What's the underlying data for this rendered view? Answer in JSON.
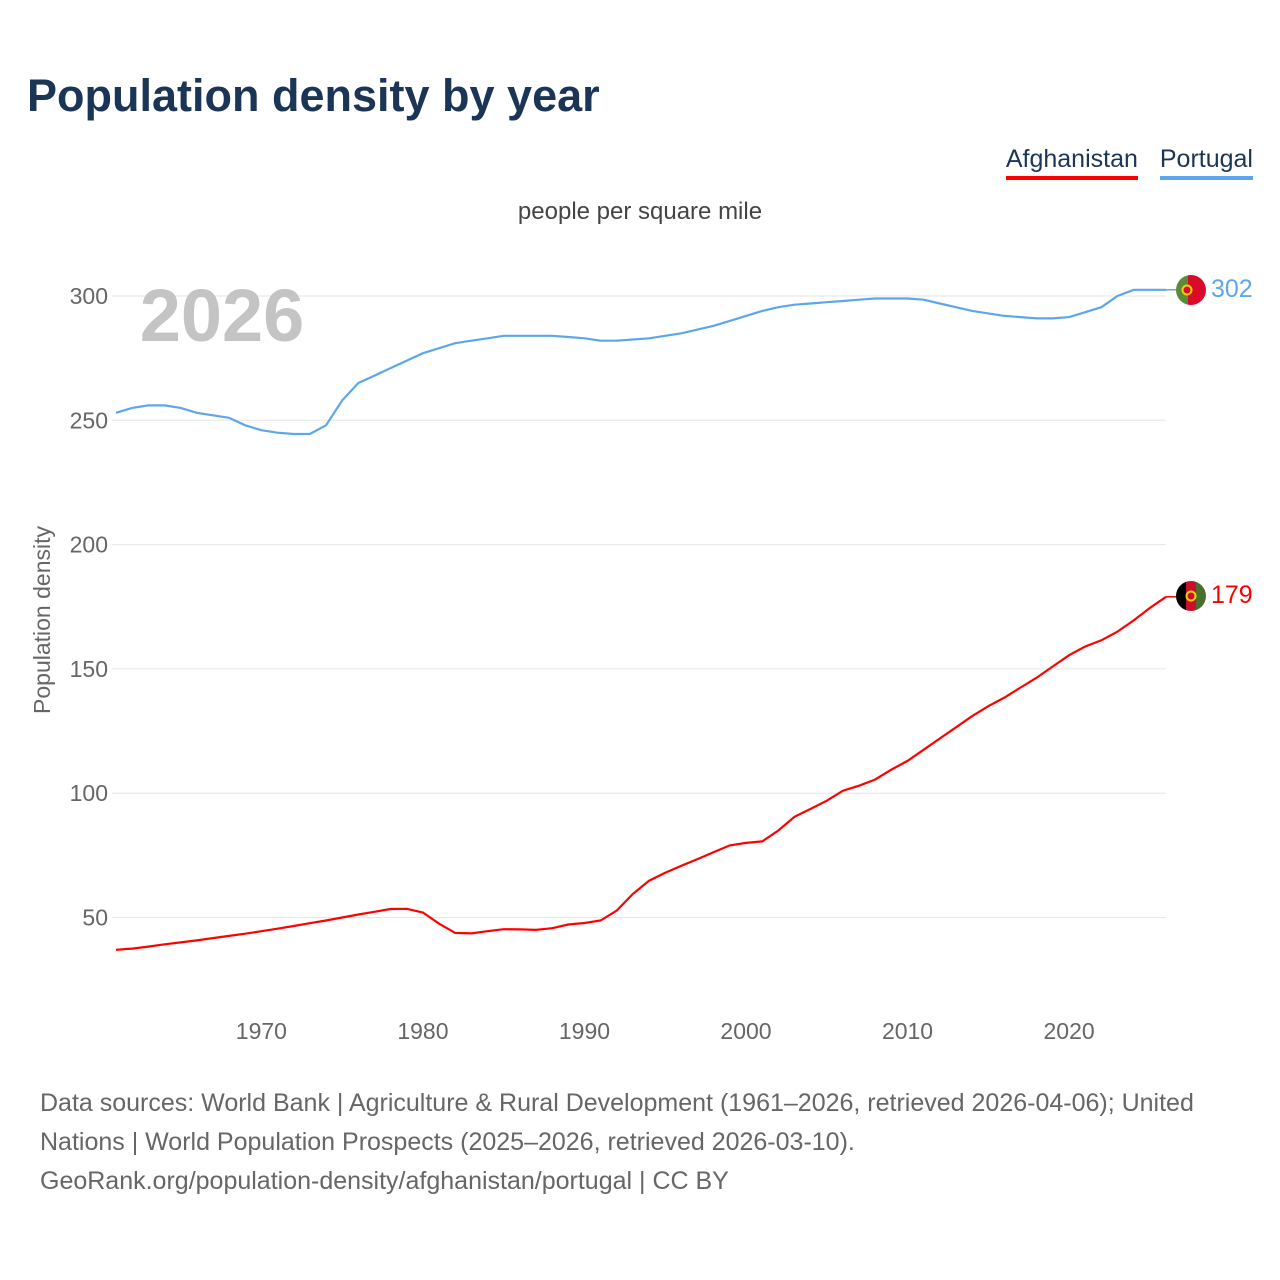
{
  "title": "Population density by year",
  "legend": [
    {
      "name": "Afghanistan",
      "color": "#ff0000"
    },
    {
      "name": "Portugal",
      "color": "#5ea6ea"
    }
  ],
  "subtitle": "people per square mile",
  "year_watermark": "2026",
  "footer": {
    "line1": "Data sources: World Bank | Agriculture & Rural Development (1961–2026, retrieved 2026-04-06); United Nations | World Population Prospects (2025–2026, retrieved 2026-03-10).",
    "line2": "GeoRank.org/population-density/afghanistan/portugal | CC BY"
  },
  "chart_data": {
    "type": "line",
    "title": "Population density by year",
    "subtitle": "people per square mile",
    "xlabel": "",
    "ylabel": "Population density",
    "xlim": [
      1961,
      2026
    ],
    "ylim": [
      15,
      320
    ],
    "x_ticks": [
      1970,
      1980,
      1990,
      2000,
      2010,
      2020
    ],
    "y_ticks": [
      50,
      100,
      150,
      200,
      250,
      300
    ],
    "grid": true,
    "legend_position": "top-right",
    "x": [
      1961,
      1962,
      1963,
      1964,
      1965,
      1966,
      1967,
      1968,
      1969,
      1970,
      1971,
      1972,
      1973,
      1974,
      1975,
      1976,
      1977,
      1978,
      1979,
      1980,
      1981,
      1982,
      1983,
      1984,
      1985,
      1986,
      1987,
      1988,
      1989,
      1990,
      1991,
      1992,
      1993,
      1994,
      1995,
      1996,
      1997,
      1998,
      1999,
      2000,
      2001,
      2002,
      2003,
      2004,
      2005,
      2006,
      2007,
      2008,
      2009,
      2010,
      2011,
      2012,
      2013,
      2014,
      2015,
      2016,
      2017,
      2018,
      2019,
      2020,
      2021,
      2022,
      2023,
      2024,
      2025,
      2026
    ],
    "series": [
      {
        "name": "Portugal",
        "color": "#5ea6ea",
        "end_label": "302",
        "values": [
          253,
          255,
          256,
          256,
          255,
          253,
          252,
          251,
          248,
          246,
          245,
          244.5,
          244.5,
          248,
          258,
          265,
          268,
          271,
          274,
          277,
          279,
          281,
          282,
          283,
          284,
          284,
          284,
          284,
          283.5,
          283,
          282,
          282,
          282.5,
          283,
          284,
          285,
          286.5,
          288,
          290,
          292,
          294,
          295.5,
          296.5,
          297,
          297.5,
          298,
          298.5,
          299,
          299,
          299,
          298.5,
          297,
          295.5,
          294,
          293,
          292,
          291.5,
          291,
          291,
          291.5,
          293.5,
          295.5,
          300,
          302.5,
          302.5,
          302.5
        ]
      },
      {
        "name": "Afghanistan",
        "color": "#ff0000",
        "end_label": "179",
        "values": [
          37,
          37.5,
          38.3,
          39.2,
          40,
          40.8,
          41.7,
          42.6,
          43.5,
          44.5,
          45.5,
          46.6,
          47.7,
          48.8,
          50,
          51.2,
          52.3,
          53.4,
          53.5,
          52,
          47.5,
          43.8,
          43.6,
          44.5,
          45.3,
          45.2,
          45,
          45.7,
          47.2,
          47.8,
          48.8,
          52.8,
          59.5,
          64.8,
          68,
          70.8,
          73.5,
          76.3,
          79,
          80,
          80.6,
          85,
          90.5,
          93.7,
          97,
          101,
          103,
          105.5,
          109.5,
          113,
          117.5,
          122,
          126.5,
          131,
          135,
          138.5,
          142.5,
          146.5,
          151,
          155.5,
          159,
          161.5,
          165,
          169.5,
          174.5,
          179
        ]
      }
    ]
  }
}
